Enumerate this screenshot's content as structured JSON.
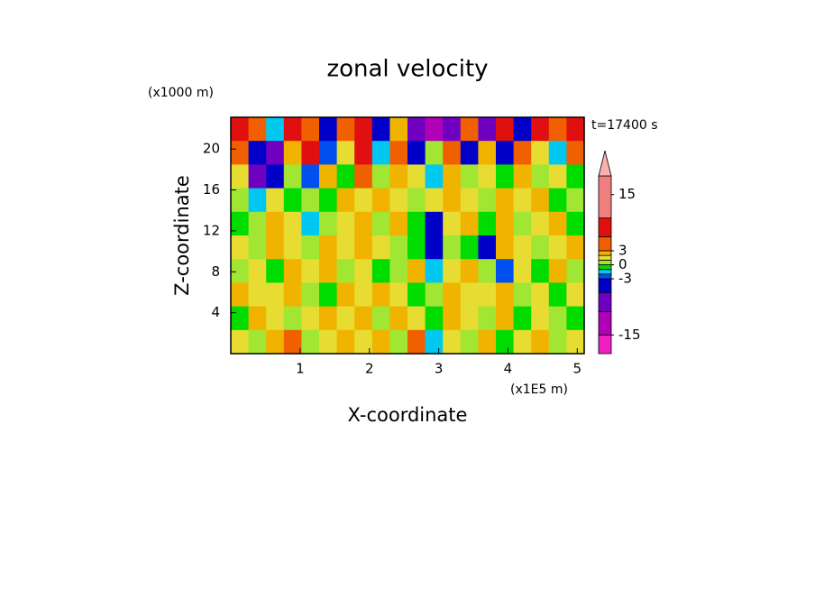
{
  "chart_data": {
    "type": "contour",
    "title": "zonal velocity",
    "y_unit_label": "(x1000 m)",
    "x_unit_label": "(x1E5 m)",
    "time_label": "t=17400 s",
    "xlabel": "X-coordinate",
    "ylabel": "Z-coordinate",
    "xlim": [
      0,
      5.1
    ],
    "ylim": [
      0,
      23.1
    ],
    "xticks": [
      1,
      2,
      3,
      4,
      5
    ],
    "yticks": [
      4,
      8,
      12,
      16,
      20
    ],
    "field": [
      [
        8,
        5,
        -2,
        7,
        4,
        -6,
        3,
        9,
        -4,
        2,
        -10,
        -12,
        -8,
        4,
        -7,
        6,
        -4,
        8,
        3,
        6
      ],
      [
        3,
        -5,
        -8,
        2,
        6,
        -3,
        1,
        7,
        -2,
        5,
        -6,
        0,
        3,
        -4,
        2,
        -5,
        4,
        1,
        -2,
        3
      ],
      [
        1,
        -9,
        -6,
        0,
        -3,
        2,
        -1,
        3,
        0,
        2,
        1,
        -2,
        2,
        0,
        1,
        -1,
        2,
        0,
        1,
        -1
      ],
      [
        0,
        -2,
        1,
        -1,
        0,
        -1,
        2,
        1,
        2,
        1,
        0,
        1,
        2,
        1,
        0,
        2,
        1,
        2,
        -1,
        0
      ],
      [
        -1,
        0,
        2,
        1,
        -2,
        0,
        1,
        2,
        0,
        2,
        -1,
        -6,
        1,
        2,
        -1,
        2,
        0,
        1,
        2,
        -1
      ],
      [
        1,
        0,
        2,
        1,
        0,
        2,
        1,
        2,
        1,
        0,
        -1,
        -4,
        0,
        -1,
        -6,
        2,
        1,
        0,
        1,
        2
      ],
      [
        0,
        1,
        -1,
        2,
        1,
        2,
        0,
        1,
        -1,
        0,
        2,
        -2,
        1,
        2,
        0,
        -3,
        1,
        -1,
        2,
        0
      ],
      [
        2,
        1,
        1,
        2,
        0,
        -1,
        2,
        1,
        2,
        1,
        -1,
        0,
        2,
        1,
        1,
        2,
        0,
        1,
        -1,
        1
      ],
      [
        -1,
        2,
        1,
        0,
        1,
        2,
        1,
        2,
        0,
        2,
        1,
        -1,
        2,
        1,
        0,
        2,
        -1,
        1,
        0,
        -1
      ],
      [
        1,
        0,
        2,
        3,
        0,
        1,
        2,
        1,
        2,
        0,
        3,
        -2,
        1,
        0,
        2,
        -1,
        1,
        2,
        0,
        1
      ]
    ],
    "colorbar": {
      "levels": [
        -19,
        -15,
        -10,
        -6,
        -3,
        -2,
        -1,
        0,
        1,
        2,
        3,
        6,
        10,
        19
      ],
      "colors": [
        "#f020c0",
        "#b000b8",
        "#7000c0",
        "#0000c8",
        "#0050f0",
        "#00c8f0",
        "#00dc00",
        "#a0e632",
        "#e6dc32",
        "#f0b400",
        "#f06000",
        "#e01010",
        "#f08080"
      ],
      "extend_color": "#f8b0b0",
      "ticks": [
        -15,
        -3,
        0,
        3,
        15
      ]
    }
  }
}
